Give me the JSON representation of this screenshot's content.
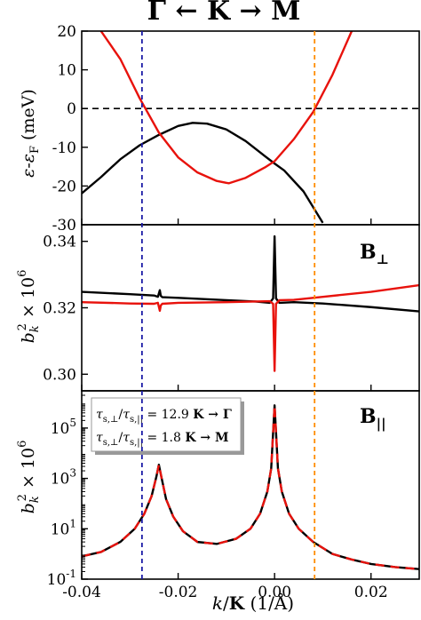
{
  "figure_title": "Γ ← K → M",
  "shared_x": {
    "label": "k/K (1/Å)",
    "label_parts": {
      "k": "k",
      "slash": "/",
      "K": "K",
      "unit": " (1/Å)"
    },
    "range": [
      -0.04,
      0.03
    ],
    "ticks": [
      -0.04,
      -0.02,
      0.0,
      0.02
    ],
    "tick_labels": [
      "-0.04",
      "-0.02",
      "0.00",
      "0.02"
    ]
  },
  "vertical_markers": [
    {
      "x": -0.0275,
      "color": "#1a1aa6",
      "style": "dashed"
    },
    {
      "x": 0.0083,
      "color": "#ff8c00",
      "style": "dashed"
    }
  ],
  "colors": {
    "black_series": "#000000",
    "red_series": "#e8120c"
  },
  "chart_data": [
    {
      "type": "line",
      "panel": "energy",
      "ylabel": "ε-ε_F (meV)",
      "ylabel_parts": {
        "eps1": "ε",
        "dash": "-",
        "eps2": "ε",
        "sub": "F",
        "unit": " (meV)"
      },
      "ylim": [
        -30,
        20
      ],
      "yticks": [
        -30,
        -20,
        -10,
        0,
        10,
        20
      ],
      "ytick_labels": [
        "-30",
        "-20",
        "-10",
        "0",
        "10",
        "20"
      ],
      "reference_line": {
        "y": 0,
        "style": "dashed",
        "color": "#000000"
      },
      "series": [
        {
          "color": "#000000",
          "x": [
            -0.04,
            -0.036,
            -0.032,
            -0.028,
            -0.024,
            -0.02,
            -0.017,
            -0.014,
            -0.01,
            -0.006,
            -0.002,
            0.0,
            0.002,
            0.006,
            0.01
          ],
          "y": [
            -21.9,
            -17.7,
            -13.1,
            -9.5,
            -6.8,
            -4.5,
            -3.7,
            -3.9,
            -5.4,
            -8.4,
            -12.3,
            -14.2,
            -16.0,
            -21.4,
            -29.5
          ]
        },
        {
          "color": "#e8120c",
          "x": [
            -0.036,
            -0.032,
            -0.028,
            -0.024,
            -0.02,
            -0.016,
            -0.012,
            -0.0095,
            -0.006,
            -0.002,
            0.0,
            0.004,
            0.008,
            0.012,
            0.016
          ],
          "y": [
            20.0,
            12.8,
            2.7,
            -6.2,
            -12.6,
            -16.5,
            -18.7,
            -19.3,
            -17.9,
            -15.2,
            -13.6,
            -7.9,
            -0.9,
            8.7,
            20.0
          ]
        }
      ]
    },
    {
      "type": "line",
      "panel": "b_perp",
      "ylabel": "b_k^2 × 10^6",
      "ylabel_parts": {
        "b": "b",
        "sub": "k",
        "sup": "2",
        "times": " × 10",
        "exp": "6"
      },
      "ylim": [
        0.295,
        0.345
      ],
      "yticks": [
        0.3,
        0.32,
        0.34
      ],
      "ytick_labels": [
        "0.30",
        "0.32",
        "0.34"
      ],
      "panel_label": {
        "base": "B",
        "sub": "⊥"
      },
      "series": [
        {
          "color": "#000000",
          "x": [
            -0.04,
            -0.03,
            -0.025,
            -0.0242,
            -0.0238,
            -0.0236,
            -0.0233,
            -0.02,
            -0.01,
            -0.004,
            -0.001,
            -0.0003,
            0.0,
            0.0003,
            0.001,
            0.004,
            0.01,
            0.02,
            0.03
          ],
          "y": [
            0.3248,
            0.3241,
            0.3237,
            0.3233,
            0.3253,
            0.3236,
            0.3232,
            0.323,
            0.3223,
            0.3219,
            0.3215,
            0.3228,
            0.3415,
            0.3228,
            0.3215,
            0.3217,
            0.3213,
            0.3202,
            0.3189
          ]
        },
        {
          "color": "#e8120c",
          "x": [
            -0.04,
            -0.03,
            -0.025,
            -0.0242,
            -0.0238,
            -0.0236,
            -0.0233,
            -0.02,
            -0.01,
            -0.004,
            -0.001,
            -0.0003,
            0.0,
            0.0003,
            0.001,
            0.004,
            0.01,
            0.02,
            0.03
          ],
          "y": [
            0.3217,
            0.3213,
            0.3212,
            0.3215,
            0.3191,
            0.3207,
            0.3212,
            0.3215,
            0.3217,
            0.3219,
            0.322,
            0.3212,
            0.301,
            0.3212,
            0.3223,
            0.3224,
            0.3233,
            0.3248,
            0.3268
          ]
        }
      ]
    },
    {
      "type": "line",
      "panel": "b_par",
      "ylabel": "b_k^2 × 10^6",
      "ylabel_parts": {
        "b": "b",
        "sub": "k",
        "sup": "2",
        "times": " × 10",
        "exp": "6"
      },
      "yscale": "log",
      "ylim": [
        0.1,
        3000000
      ],
      "yticks": [
        0.1,
        10,
        1000,
        100000
      ],
      "ytick_labels": [
        {
          "base": "10",
          "exp": "-1"
        },
        {
          "base": "10",
          "exp": "1"
        },
        {
          "base": "10",
          "exp": "3"
        },
        {
          "base": "10",
          "exp": "5"
        }
      ],
      "panel_label": {
        "base": "B",
        "sub": "||"
      },
      "annotation_box": {
        "line1": {
          "tau": "τ",
          "s1": "s,⊥",
          "slash": "/",
          "s2": "s,||",
          "eq": " = 12.9 ",
          "dir": "K → Γ"
        },
        "line2": {
          "tau": "τ",
          "s1": "s,⊥",
          "slash": "/",
          "s2": "s,||",
          "eq": " = 1.8 ",
          "dir": "K → M"
        }
      },
      "series": [
        {
          "color": "#000000",
          "style": "solid",
          "x": [
            -0.04,
            -0.036,
            -0.032,
            -0.029,
            -0.027,
            -0.0255,
            -0.0245,
            -0.024,
            -0.0235,
            -0.0225,
            -0.021,
            -0.019,
            -0.016,
            -0.012,
            -0.008,
            -0.005,
            -0.003,
            -0.0015,
            -0.0007,
            0.0,
            0.0007,
            0.0015,
            0.003,
            0.005,
            0.008,
            0.012,
            0.016,
            0.02,
            0.025,
            0.03
          ],
          "y": [
            0.8,
            1.2,
            3,
            10,
            40,
            200,
            1200,
            3500,
            1200,
            150,
            30,
            8,
            3,
            2.5,
            4,
            10,
            40,
            300,
            2500,
            800000,
            2500,
            300,
            40,
            10,
            3,
            1,
            0.6,
            0.4,
            0.3,
            0.25
          ]
        },
        {
          "color": "#e8120c",
          "style": "dashed",
          "x": [
            -0.04,
            -0.036,
            -0.032,
            -0.029,
            -0.027,
            -0.0255,
            -0.0245,
            -0.024,
            -0.0235,
            -0.0225,
            -0.021,
            -0.019,
            -0.016,
            -0.012,
            -0.008,
            -0.005,
            -0.003,
            -0.0015,
            -0.0007,
            0.0,
            0.0007,
            0.0015,
            0.003,
            0.005,
            0.008,
            0.012,
            0.016,
            0.02,
            0.025,
            0.03
          ],
          "y": [
            0.8,
            1.2,
            3,
            10,
            40,
            200,
            1200,
            3500,
            1200,
            150,
            30,
            8,
            3,
            2.5,
            4,
            10,
            40,
            300,
            2500,
            800000,
            2500,
            300,
            40,
            10,
            3,
            1,
            0.6,
            0.4,
            0.3,
            0.25
          ]
        }
      ]
    }
  ]
}
